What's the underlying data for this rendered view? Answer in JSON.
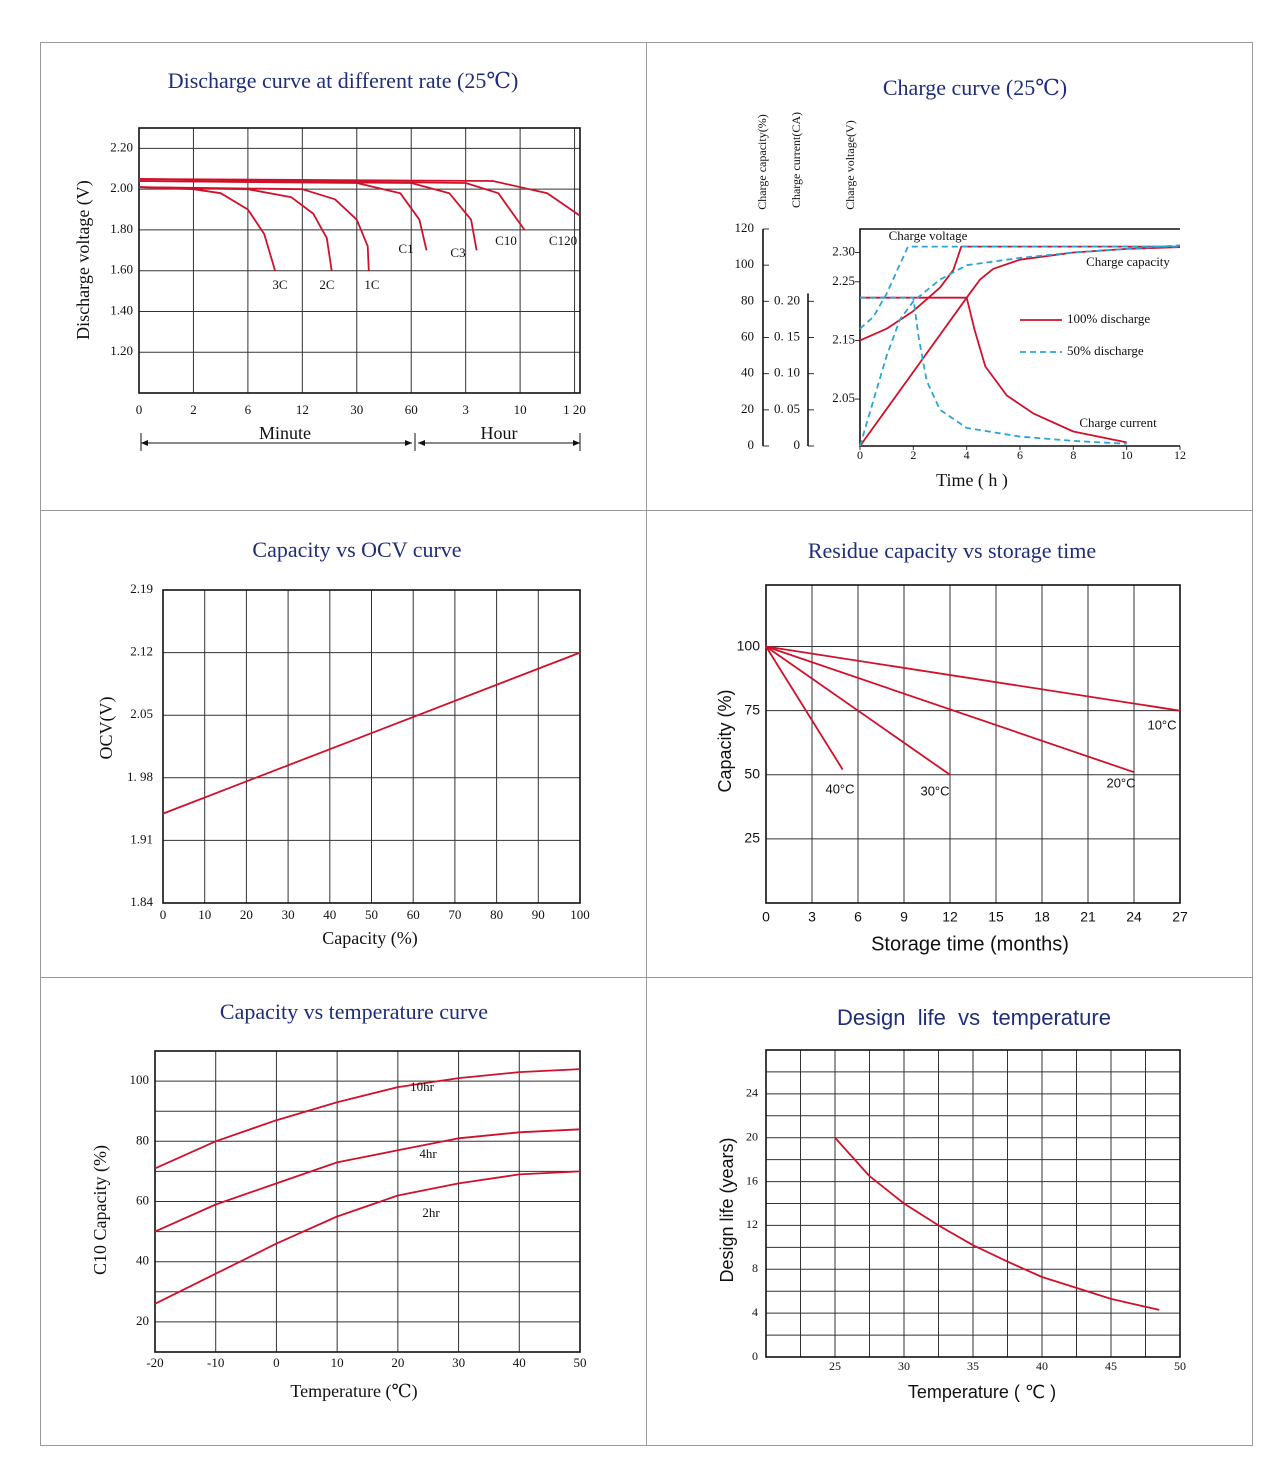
{
  "chart_data": [
    {
      "type": "line",
      "title": "Discharge curve at different rate (25℃)",
      "y_label": "Discharge voltage (V)",
      "annotations": [
        "Minute",
        "Hour"
      ],
      "xlim": [
        0,
        8.1
      ],
      "xticks": [
        {
          "value": 0,
          "label": "0"
        },
        {
          "value": 1,
          "label": "2"
        },
        {
          "value": 2,
          "label": "6"
        },
        {
          "value": 3,
          "label": "12"
        },
        {
          "value": 4,
          "label": "30"
        },
        {
          "value": 5,
          "label": "60"
        },
        {
          "value": 6,
          "label": "3"
        },
        {
          "value": 7,
          "label": "10"
        },
        {
          "value": 8,
          "label": "1 20"
        }
      ],
      "ylim": [
        1.0,
        2.3
      ],
      "yticks": [
        {
          "value": 1.2,
          "label": "1.20"
        },
        {
          "value": 1.4,
          "label": "1.40"
        },
        {
          "value": 1.6,
          "label": "1.60"
        },
        {
          "value": 1.8,
          "label": "1.80"
        },
        {
          "value": 2.0,
          "label": "2.00"
        },
        {
          "value": 2.2,
          "label": "2.20"
        }
      ],
      "grid": true,
      "series": [
        {
          "name": "3C",
          "color": "#d0112b",
          "x": [
            0,
            1,
            1.5,
            2.0,
            2.3,
            2.5
          ],
          "values": [
            2.01,
            2.0,
            1.98,
            1.9,
            1.78,
            1.6
          ]
        },
        {
          "name": "2C",
          "color": "#d0112b",
          "x": [
            0,
            2,
            2.8,
            3.2,
            3.45,
            3.54
          ],
          "values": [
            2.01,
            2.0,
            1.96,
            1.88,
            1.76,
            1.6
          ]
        },
        {
          "name": "1C",
          "color": "#d0112b",
          "x": [
            0,
            3,
            3.6,
            4.0,
            4.2,
            4.22
          ],
          "values": [
            2.01,
            2.0,
            1.95,
            1.85,
            1.72,
            1.6
          ]
        },
        {
          "name": "C1",
          "color": "#d0112b",
          "x": [
            0,
            4,
            4.8,
            5.15,
            5.28
          ],
          "values": [
            2.04,
            2.03,
            1.98,
            1.85,
            1.7
          ]
        },
        {
          "name": "C3",
          "color": "#d0112b",
          "x": [
            0,
            5,
            5.7,
            6.1,
            6.2
          ],
          "values": [
            2.04,
            2.03,
            1.98,
            1.85,
            1.7
          ]
        },
        {
          "name": "C10",
          "color": "#d0112b",
          "x": [
            0,
            6,
            6.6,
            7.08
          ],
          "values": [
            2.05,
            2.03,
            1.98,
            1.8
          ]
        },
        {
          "name": "C120",
          "color": "#d0112b",
          "x": [
            0,
            6.5,
            7.5,
            8.1
          ],
          "values": [
            2.05,
            2.04,
            1.98,
            1.87
          ]
        }
      ]
    },
    {
      "type": "line",
      "title": "Charge curve (25℃)",
      "x_label": "Time ( h )",
      "y_label": "Charge capacity(%)",
      "y2_label": "Charge current(CA)",
      "y3_label": "Charge voltage(V)",
      "annotations": [
        "Charge voltage",
        "Charge capacity",
        "Charge current"
      ],
      "xlim": [
        0,
        12
      ],
      "xticks": [
        0,
        2,
        4,
        6,
        8,
        10,
        12
      ],
      "ylim": [
        0,
        120
      ],
      "yticks": [
        0,
        20,
        40,
        60,
        80,
        100,
        120
      ],
      "y2lim": [
        0,
        0.3
      ],
      "y2ticks": [
        0,
        {
          "value": 0.05,
          "label": "0. 05"
        },
        {
          "value": 0.1,
          "label": "0. 10"
        },
        {
          "value": 0.15,
          "label": "0. 15"
        },
        {
          "value": 0.2,
          "label": "0. 20"
        }
      ],
      "y3lim": [
        1.97,
        2.34
      ],
      "y3ticks": [
        2.05,
        2.15,
        2.25,
        {
          "value": 2.3,
          "label": "2.30"
        }
      ],
      "series": [
        {
          "name": "100% discharge",
          "color": "#d0112b",
          "dash": false,
          "lines": [
            {
              "axis": "y3",
              "x": [
                0,
                1,
                2,
                3,
                3.5,
                3.8,
                12
              ],
              "values": [
                2.15,
                2.17,
                2.2,
                2.24,
                2.27,
                2.31,
                2.31
              ]
            },
            {
              "axis": "y",
              "x": [
                0,
                4,
                4.5,
                5,
                6,
                8,
                10,
                12
              ],
              "values": [
                0,
                82,
                92,
                98,
                103,
                107,
                109,
                110
              ]
            },
            {
              "axis": "y2",
              "x": [
                0,
                4,
                4.3,
                4.7,
                5.5,
                6.5,
                8,
                10
              ],
              "values": [
                0.205,
                0.205,
                0.16,
                0.11,
                0.07,
                0.045,
                0.02,
                0.005
              ]
            }
          ]
        },
        {
          "name": "50% discharge",
          "color": "#2aa6d6",
          "dash": true,
          "lines": [
            {
              "axis": "y3",
              "x": [
                0,
                0.5,
                1,
                1.5,
                1.8,
                12
              ],
              "values": [
                2.17,
                2.19,
                2.23,
                2.28,
                2.31,
                2.31
              ]
            },
            {
              "axis": "y",
              "x": [
                0,
                0.5,
                1,
                1.5,
                2,
                3,
                4,
                6,
                8,
                10,
                12
              ],
              "values": [
                0,
                25,
                50,
                70,
                80,
                92,
                100,
                104,
                107,
                109,
                111
              ]
            },
            {
              "axis": "y2",
              "x": [
                0,
                2,
                2.2,
                2.5,
                3,
                4,
                6,
                8,
                10
              ],
              "values": [
                0.205,
                0.205,
                0.15,
                0.09,
                0.05,
                0.025,
                0.013,
                0.007,
                0.003
              ]
            }
          ]
        }
      ]
    },
    {
      "type": "line",
      "title": "Capacity vs OCV curve",
      "x_label": "Capacity (%)",
      "y_label": "OCV(V)",
      "xlim": [
        0,
        100
      ],
      "xticks": [
        0,
        10,
        20,
        30,
        40,
        50,
        60,
        70,
        80,
        90,
        100
      ],
      "ylim": [
        1.84,
        2.19
      ],
      "yticks": [
        1.84,
        1.91,
        {
          "value": 1.98,
          "label": "1. 98"
        },
        2.05,
        2.12,
        2.19
      ],
      "grid": true,
      "series": [
        {
          "color": "#d0112b",
          "x": [
            0,
            100
          ],
          "values": [
            1.94,
            2.12
          ]
        }
      ]
    },
    {
      "type": "line",
      "title": "Residue capacity vs storage time",
      "x_label": "Storage time (months)",
      "y_label": "Capacity (%)",
      "xlim": [
        0,
        27
      ],
      "xticks": [
        0,
        3,
        6,
        9,
        12,
        15,
        18,
        21,
        24,
        27
      ],
      "ylim": [
        0,
        124
      ],
      "yticks": [
        25,
        50,
        75,
        100
      ],
      "grid": true,
      "series": [
        {
          "name": "40°C",
          "color": "#d0112b",
          "x": [
            0,
            5
          ],
          "values": [
            100,
            52
          ]
        },
        {
          "name": "30°C",
          "color": "#d0112b",
          "x": [
            0,
            12
          ],
          "values": [
            100,
            50
          ]
        },
        {
          "name": "20°C",
          "color": "#d0112b",
          "x": [
            0,
            24
          ],
          "values": [
            100,
            51
          ]
        },
        {
          "name": "10°C",
          "color": "#d0112b",
          "x": [
            0,
            27
          ],
          "values": [
            100,
            75
          ]
        }
      ]
    },
    {
      "type": "line",
      "title": "Capacity vs temperature curve",
      "x_label": "Temperature (℃)",
      "y_label": "C10 Capacity (%)",
      "xlim": [
        -20,
        50
      ],
      "xticks": [
        -20,
        -10,
        0,
        10,
        20,
        30,
        40,
        50
      ],
      "ylim": [
        10,
        110
      ],
      "yticks": [
        20,
        40,
        60,
        80,
        100
      ],
      "minor_yticks": [
        30,
        50,
        70,
        90
      ],
      "grid": true,
      "series": [
        {
          "name": "10hr",
          "color": "#d0112b",
          "x": [
            -20,
            -10,
            0,
            10,
            20,
            30,
            40,
            50
          ],
          "values": [
            71,
            80,
            87,
            93,
            98,
            101,
            103,
            104
          ]
        },
        {
          "name": "4hr",
          "color": "#d0112b",
          "x": [
            -20,
            -10,
            0,
            10,
            20,
            30,
            40,
            50
          ],
          "values": [
            50,
            59,
            66,
            73,
            77,
            81,
            83,
            84
          ]
        },
        {
          "name": "2hr",
          "color": "#d0112b",
          "x": [
            -20,
            -10,
            0,
            10,
            20,
            30,
            40,
            50
          ],
          "values": [
            26,
            36,
            46,
            55,
            62,
            66,
            69,
            70
          ]
        }
      ]
    },
    {
      "type": "line",
      "title": "Design  life  vs  temperature",
      "x_label": "Temperature ( ℃ )",
      "y_label": "Design life (years)",
      "xlim": [
        20,
        50
      ],
      "xticks": [
        25,
        30,
        35,
        40,
        45,
        50
      ],
      "minor_xticks": [
        22.5,
        27.5,
        32.5,
        37.5,
        42.5,
        47.5
      ],
      "ylim": [
        0,
        28
      ],
      "yticks": [
        0,
        4,
        8,
        12,
        16,
        20,
        24
      ],
      "minor_yticks": [
        2,
        6,
        10,
        14,
        18,
        22,
        26
      ],
      "grid": true,
      "series": [
        {
          "color": "#d0112b",
          "x": [
            25,
            27.5,
            30,
            32.5,
            35,
            37.5,
            40,
            42.5,
            45,
            48.5
          ],
          "values": [
            20,
            16.5,
            14,
            12,
            10.2,
            8.7,
            7.3,
            6.3,
            5.3,
            4.3
          ]
        }
      ]
    }
  ]
}
